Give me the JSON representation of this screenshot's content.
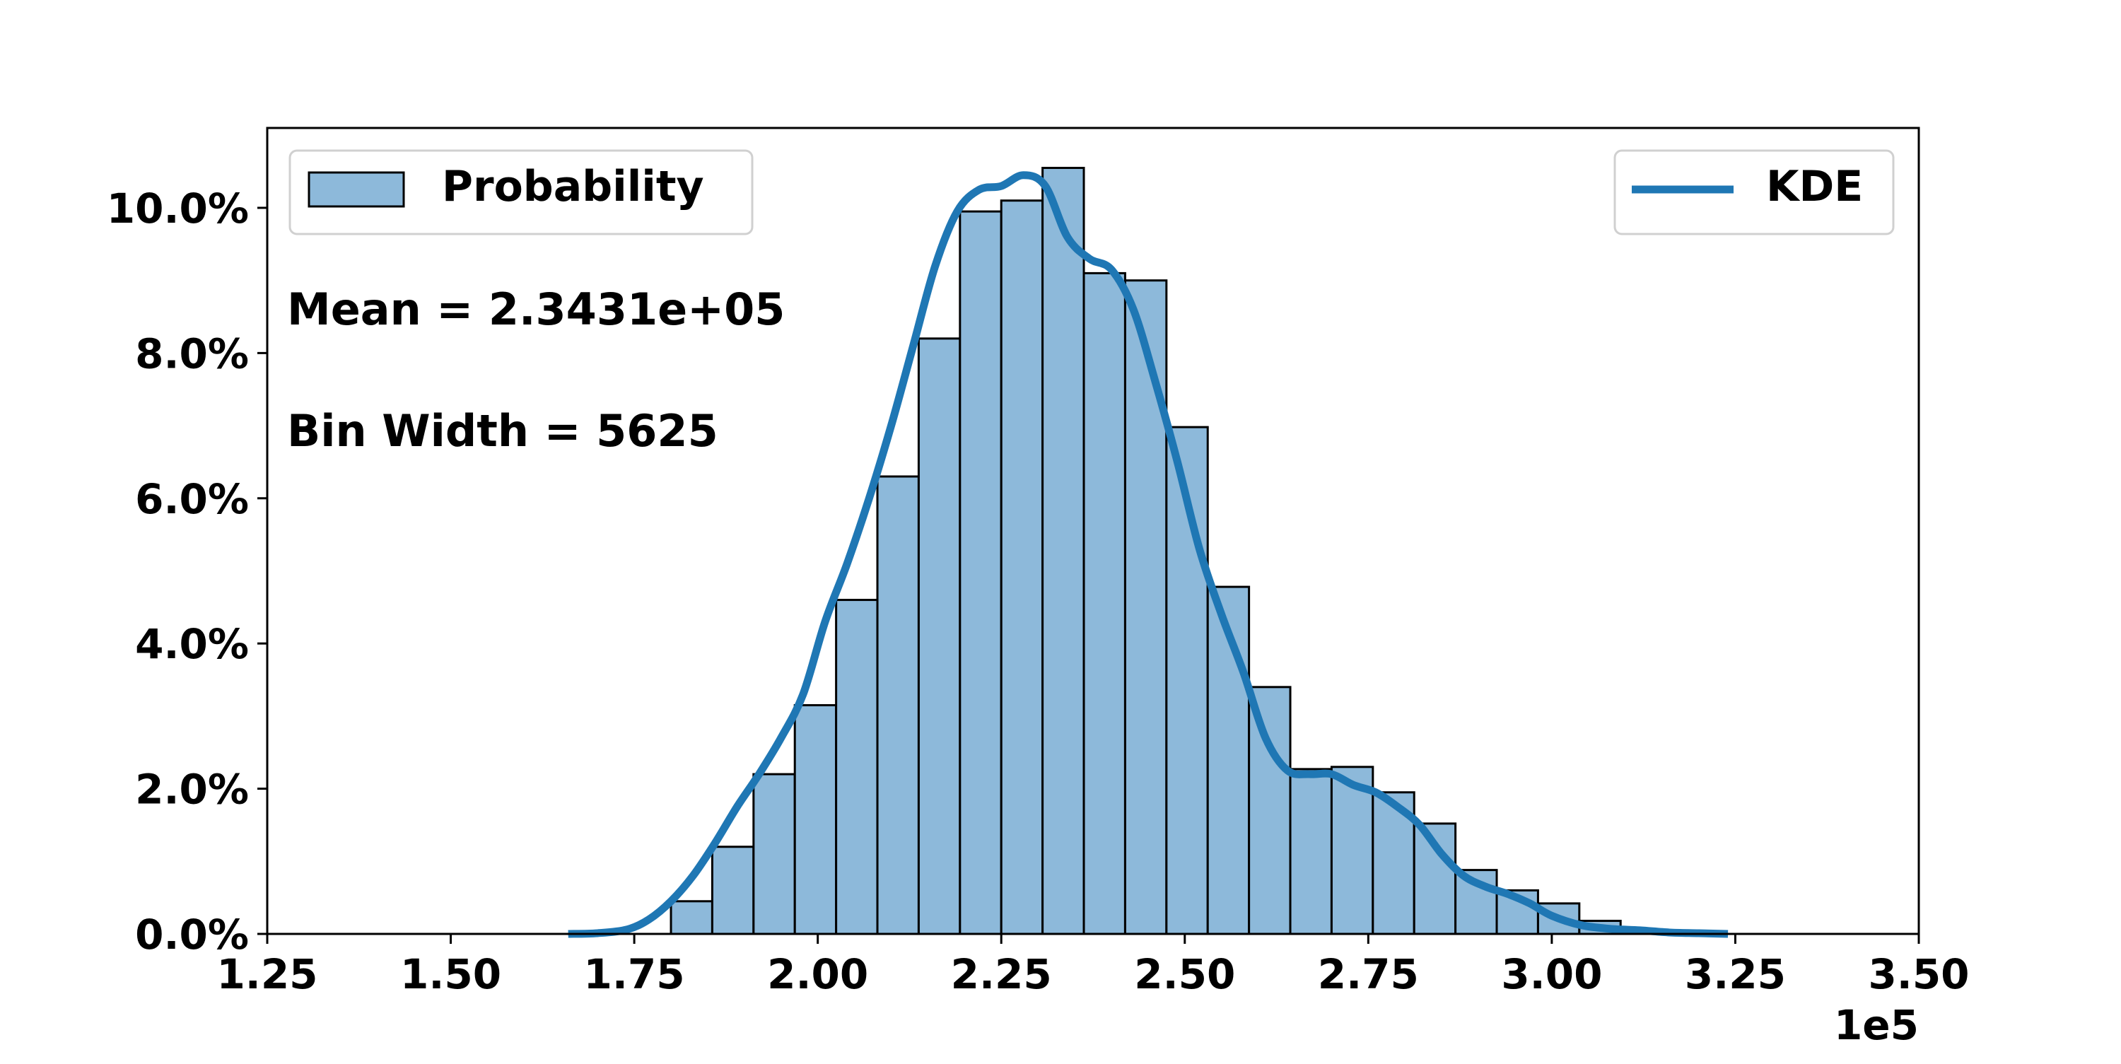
{
  "chart_data": {
    "type": "bar",
    "x_label_multiplier": "1e5",
    "x_ticks": [
      "1.25",
      "1.50",
      "1.75",
      "2.00",
      "2.25",
      "2.50",
      "2.75",
      "3.00",
      "3.25",
      "3.50"
    ],
    "y_ticks": [
      "0.0%",
      "2.0%",
      "4.0%",
      "6.0%",
      "8.0%",
      "10.0%"
    ],
    "xlim": [
      1.25,
      3.5
    ],
    "ylim": [
      0,
      11.1
    ],
    "bin_width_data_units": 0.05625,
    "bin_starts": [
      1.8,
      1.85625,
      1.9125,
      1.96875,
      2.025,
      2.08125,
      2.1375,
      2.19375,
      2.25,
      2.30625,
      2.3625,
      2.41875,
      2.475,
      2.53125,
      2.5875,
      2.64375,
      2.7,
      2.75625,
      2.8125,
      2.86875,
      2.925,
      2.98125,
      3.0375,
      3.09375
    ],
    "values": [
      0.45,
      1.2,
      2.2,
      3.15,
      4.6,
      6.3,
      8.2,
      9.95,
      10.1,
      10.55,
      9.1,
      9.0,
      6.98,
      4.78,
      3.4,
      2.27,
      2.3,
      1.95,
      1.52,
      0.88,
      0.6,
      0.42,
      0.18,
      0.06
    ],
    "series": [
      {
        "name": "Probability",
        "kind": "histogram",
        "color": "#8db9da",
        "edge_color": "#000000"
      },
      {
        "name": "KDE",
        "kind": "line",
        "color": "#1f77b4",
        "x": [
          1.66,
          1.7,
          1.74,
          1.77,
          1.8,
          1.83,
          1.86,
          1.89,
          1.92,
          1.95,
          1.98,
          2.01,
          2.04,
          2.07,
          2.1,
          2.13,
          2.16,
          2.19,
          2.22,
          2.25,
          2.28,
          2.31,
          2.34,
          2.37,
          2.4,
          2.43,
          2.46,
          2.49,
          2.52,
          2.55,
          2.58,
          2.61,
          2.64,
          2.67,
          2.7,
          2.73,
          2.76,
          2.79,
          2.82,
          2.85,
          2.88,
          2.91,
          2.94,
          2.97,
          3.0,
          3.04,
          3.08,
          3.12,
          3.16,
          3.2,
          3.24
        ],
        "y": [
          0.0,
          0.01,
          0.06,
          0.2,
          0.45,
          0.8,
          1.25,
          1.75,
          2.2,
          2.7,
          3.3,
          4.3,
          5.1,
          6.0,
          7.0,
          8.1,
          9.2,
          9.95,
          10.25,
          10.3,
          10.45,
          10.3,
          9.6,
          9.3,
          9.15,
          8.6,
          7.6,
          6.5,
          5.3,
          4.4,
          3.6,
          2.7,
          2.25,
          2.2,
          2.2,
          2.05,
          1.95,
          1.75,
          1.5,
          1.1,
          0.8,
          0.65,
          0.55,
          0.42,
          0.25,
          0.12,
          0.07,
          0.05,
          0.02,
          0.01,
          0.0
        ]
      }
    ],
    "annotations": [
      "Mean = 2.3431e+05",
      "Bin Width = 5625"
    ],
    "legends": [
      {
        "entries": [
          "Probability"
        ],
        "placement": "upper left"
      },
      {
        "entries": [
          "KDE"
        ],
        "placement": "upper right"
      }
    ],
    "grid": false
  }
}
